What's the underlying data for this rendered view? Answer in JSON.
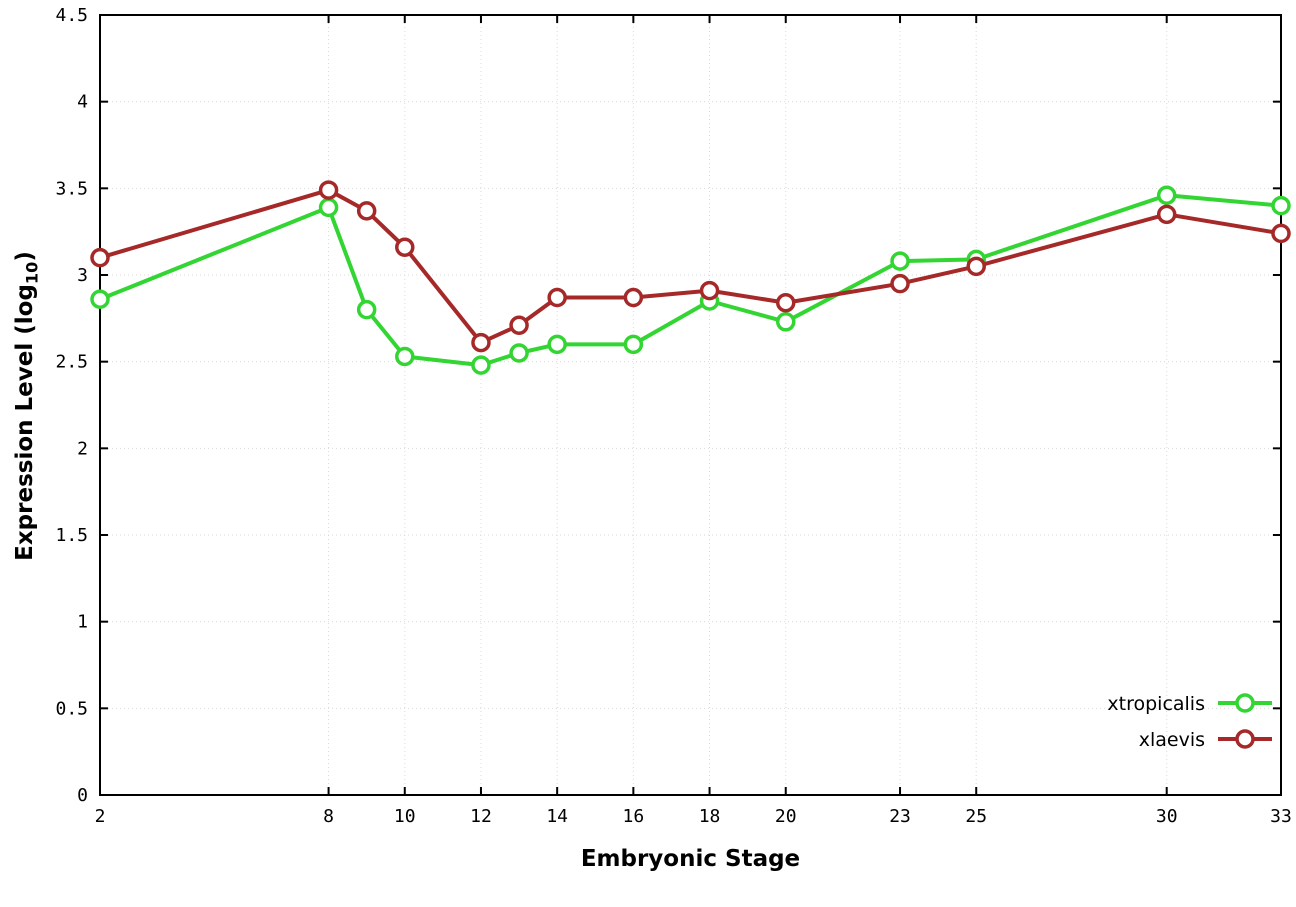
{
  "chart_data": {
    "type": "line",
    "title": "",
    "xlabel": "Embryonic Stage",
    "ylabel": "Expression Level (log10)",
    "ylabel_prefix": "Expression Level (log",
    "ylabel_sub": "10",
    "ylabel_suffix": ")",
    "xlim": [
      2,
      33
    ],
    "ylim": [
      0,
      4.5
    ],
    "grid": true,
    "grid_color": "#d9d9d9",
    "axis_color": "#000000",
    "x_ticks": [
      2,
      8,
      10,
      12,
      14,
      16,
      18,
      20,
      23,
      25,
      30,
      33
    ],
    "x_tick_labels": [
      "2",
      "8",
      "10",
      "12",
      "14",
      "16",
      "18",
      "20",
      "23",
      "25",
      "30",
      "33"
    ],
    "y_ticks": [
      0,
      0.5,
      1,
      1.5,
      2,
      2.5,
      3,
      3.5,
      4,
      4.5
    ],
    "y_tick_labels": [
      "0",
      "0.5",
      "1",
      "1.5",
      "2",
      "2.5",
      "3",
      "3.5",
      "4",
      "4.5"
    ],
    "x": [
      2,
      8,
      9,
      10,
      12,
      13,
      14,
      16,
      18,
      20,
      23,
      25,
      30,
      33
    ],
    "series": [
      {
        "name": "xtropicalis",
        "color": "#32d532",
        "values": [
          2.86,
          3.39,
          2.8,
          2.53,
          2.48,
          2.55,
          2.6,
          2.6,
          2.85,
          2.73,
          3.08,
          3.09,
          3.46,
          3.4
        ]
      },
      {
        "name": "xlaevis",
        "color": "#a62929",
        "values": [
          3.1,
          3.49,
          3.37,
          3.16,
          2.61,
          2.71,
          2.87,
          2.87,
          2.91,
          2.84,
          2.95,
          3.05,
          3.35,
          3.24
        ]
      }
    ],
    "legend_position": "bottom-right"
  }
}
